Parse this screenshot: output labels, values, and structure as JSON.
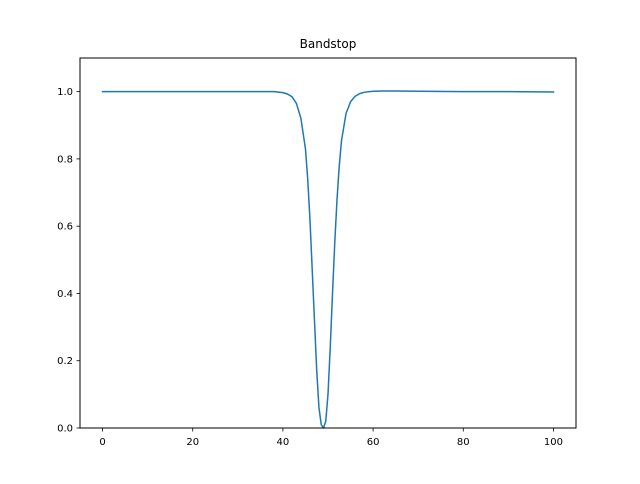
{
  "chart_data": {
    "type": "line",
    "title": "Bandstop",
    "xlabel": "",
    "ylabel": "",
    "xlim": [
      -5,
      105
    ],
    "ylim": [
      0,
      1.1
    ],
    "xticks": [
      0,
      20,
      40,
      60,
      80,
      100
    ],
    "xtick_labels": [
      "0",
      "20",
      "40",
      "60",
      "80",
      "100"
    ],
    "yticks": [
      0.0,
      0.2,
      0.4,
      0.6,
      0.8,
      1.0
    ],
    "ytick_labels": [
      "0.0",
      "0.2",
      "0.4",
      "0.6",
      "0.8",
      "1.0"
    ],
    "grid": false,
    "legend": "none",
    "series": [
      {
        "color": "#1f77b4",
        "x": [
          0,
          10,
          20,
          30,
          35,
          38,
          40,
          41,
          42,
          43,
          44,
          45,
          45.5,
          46,
          46.5,
          47,
          47.5,
          48,
          48.5,
          49,
          49.5,
          50,
          50.5,
          51,
          51.5,
          52,
          52.5,
          53,
          54,
          55,
          56,
          57,
          58,
          60,
          62,
          65,
          70,
          80,
          90,
          100
        ],
        "y": [
          1.0,
          1.0,
          1.0,
          1.0,
          1.0,
          1.0,
          0.997,
          0.993,
          0.985,
          0.965,
          0.92,
          0.83,
          0.74,
          0.62,
          0.47,
          0.32,
          0.17,
          0.06,
          0.01,
          0.0,
          0.02,
          0.1,
          0.24,
          0.4,
          0.55,
          0.68,
          0.78,
          0.855,
          0.935,
          0.97,
          0.986,
          0.994,
          0.998,
          1.001,
          1.002,
          1.002,
          1.001,
          1.0,
          1.0,
          0.999
        ]
      }
    ]
  }
}
